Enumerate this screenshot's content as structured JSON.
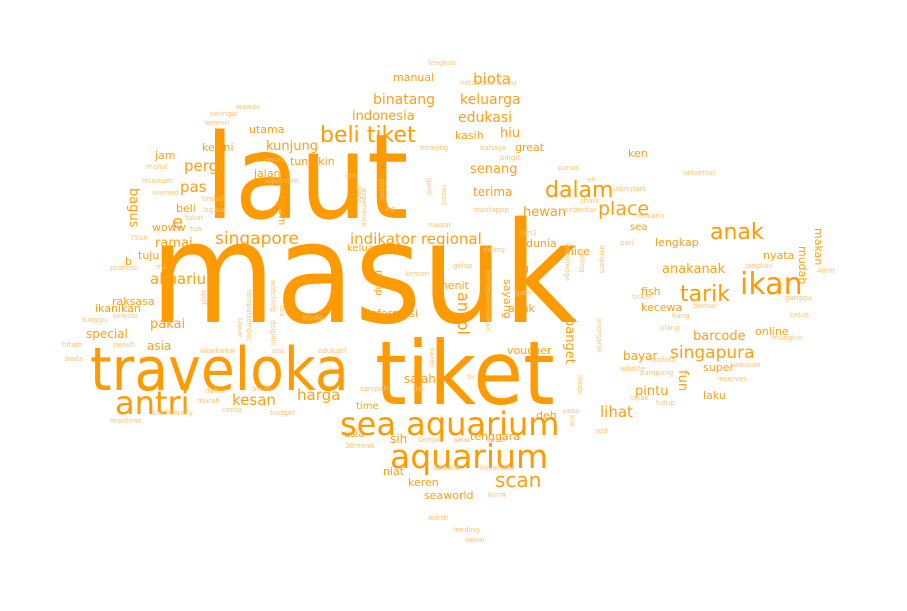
{
  "colors": {
    "text": "#ff9a00",
    "background": "#ffffff"
  },
  "words": {
    "masuk": "masuk",
    "laut": "laut",
    "tiket": "tiket",
    "traveloka": "traveloka",
    "sea_aquarium": "sea aquarium",
    "aquarium": "aquarium",
    "antri": "antri",
    "ikan": "ikan",
    "beli_tiket": "beli tiket",
    "anak": "anak",
    "dalam": "dalam",
    "tarik": "tarik",
    "singapore": "singapore",
    "indikator_regional": "indikator regional",
    "singapura": "singapura",
    "kesan": "kesan",
    "harga": "harga",
    "scan": "scan",
    "place": "place",
    "ancol": "ancol",
    "akuarium": "akuarium",
    "biota": "biota",
    "binatang": "binatang",
    "keluarga": "keluarga",
    "edukasi": "edukasi",
    "indonesia": "indonesia",
    "e": "e",
    "pergi": "pergi",
    "pas": "pas",
    "bagus": "bagus",
    "kunjung": "kunjung",
    "tunjukin": "tunjukin",
    "hiu": "hiu",
    "kasih": "kasih",
    "senang": "senang",
    "terima": "terima",
    "hewan": "hewan",
    "ramai": "ramai",
    "lengkap": "lengkap",
    "anakanak": "anakanak",
    "raksasa": "raksasa",
    "ikanikan": "ikanikan",
    "pakai": "pakai",
    "special": "special",
    "asia": "asia",
    "barcode": "barcode",
    "online": "online",
    "salah": "salah",
    "lihat": "lihat",
    "pintu": "pintu",
    "bayar": "bayar",
    "fun": "fun",
    "banget": "banget",
    "menit": "menit",
    "informasi": "informasi",
    "sih": "sih",
    "tenggara": "tenggara",
    "usia": "usia",
    "time": "time",
    "voucher": "voucher",
    "sayang": "sayang",
    "agak": "agak",
    "keluar": "keluar",
    "masuuk": "masuuk",
    "libur": "libur",
    "mirip": "mirip",
    "dunia": "dunia",
    "nice": "nice",
    "kecewa": "kecewa",
    "fish": "fish",
    "nyata": "nyata",
    "makan": "makan",
    "mudah": "mudah",
    "laku": "laku",
    "super": "super",
    "deh": "deh",
    "great": "great",
    "utama": "utama",
    "kesini": "kesini",
    "jam": "jam",
    "jalan": "jalan",
    "beli": "beli",
    "tuju": "tuju",
    "b": "b",
    "kolam": "kolam",
    "woww": "woww",
    "manual": "manual",
    "ken": "ken",
    "sea": "sea",
    "g": "g",
    "niat": "niat",
    "keren": "keren",
    "seaworld": "seaworld",
    "lengkao": "lengkao",
    "notabene": "notabene",
    "tamu": "tamu",
    "lain2": "lain2",
    "wawas": "wawas",
    "seringai": "seringai",
    "kerenn": "kerenn",
    "email": "email",
    "emejing": "emejing",
    "bahaya": "bahaya",
    "bingit": "bingit",
    "panas": "panas",
    "eh": "eh",
    "ide": "ide",
    "global": "global",
    "ganti": "ganti",
    "mahal": "mahal",
    "museum": "museum",
    "learned": "learned",
    "timbul": "timbul",
    "bgaus": "bgaus",
    "tukar": "tukar",
    "tua": "tua",
    "75an": "75an",
    "promosi": "promosi",
    "ma": "ma",
    "spot": "spot",
    "tunggu": "tunggu",
    "selesai": "selesai",
    "hitam": "hitam",
    "penuh": "penuh",
    "wkwkwkw": "wkwkwkw",
    "beda": "beda",
    "daftar": "daftar",
    "murah": "murah",
    "cerita": "cerita",
    "budget": "budget",
    "biodiversity": "biodiversity",
    "maritime": "maritime",
    "belah": "belah",
    "vip": "vip",
    "resort": "resort",
    "mantappp": "mantappp",
    "ruuaar": "ruuaar",
    "doang": "doang",
    "kemari": "kemari",
    "gelap": "gelap",
    "gate": "gate",
    "studio": "studio",
    "edukatif": "edukatif",
    "sampah": "sampah",
    "dar": "dar",
    "tu": "tu",
    "sempit": "sempit",
    "awas": "awas",
    "kenal": "kenal",
    "30menit": "30menit",
    "dewasa": "dewasa",
    "kacamata": "kacamata",
    "kirim": "kirim",
    "worth": "worth",
    "feeding": "feeding",
    "benar": "benar",
    "jatimpark": "jatimpark",
    "sebentar": "sebentar",
    "shark": "shark",
    "rencana": "rencana",
    "pari": "pari",
    "dengam": "dengam",
    "jangkau": "jangkau",
    "40mt": "40mt",
    "ganggu": "ganggu",
    "cetus": "cetus",
    "mungkin": "mungkin",
    "kawasan": "kawasan",
    "reserves": "reserves",
    "tutup": "tutup",
    "layak": "layak",
    "pampang": "pampang",
    "buesar": "buesar",
    "hang": "hang",
    "fotofoto": "fotofoto",
    "universal": "universal",
    "ulang": "ulang",
    "wildlife": "wildlife",
    "anorganik": "anorganik",
    "lokasi": "lokasi",
    "yaaa": "yaaa",
    "sgd": "sgd",
    "kiik": "kiik",
    "kelling": "kelling",
    "knowledge": "knowledge",
    "giant": "giant",
    "experience": "experience",
    "dolphin": "dolphin",
    "watching": "watching",
    "tempattempat": "tempattempat",
    "aquarium_small": "aquarium",
    "tawar": "tawar",
    "tau": "tau",
    "asa": "asa",
    "karen": "karen",
    "berdesakdesakan": "berdesakdesakan",
    "ticket": "ticket"
  }
}
